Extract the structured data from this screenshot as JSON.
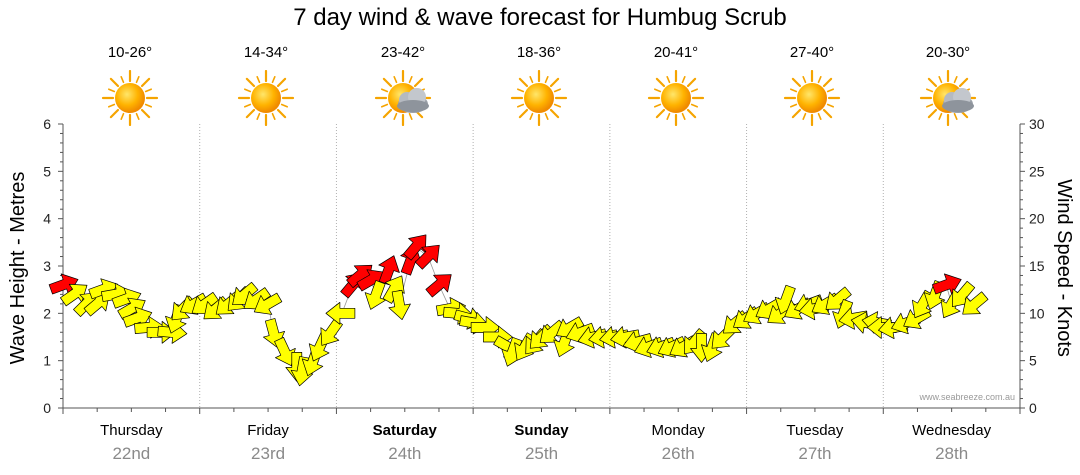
{
  "title": "7 day wind & wave forecast for Humbug Scrub",
  "watermark": "www.seabreeze.com.au",
  "colors": {
    "wind_high": "#ff0000",
    "wind_low": "#ffff00",
    "gridline": "#b0b0b0",
    "axis": "#555555"
  },
  "days": [
    {
      "name": "Thursday",
      "date": "22nd",
      "temp": "10-26°",
      "weather_icon": "sun-icon",
      "bold": false
    },
    {
      "name": "Friday",
      "date": "23rd",
      "temp": "14-34°",
      "weather_icon": "sun-icon",
      "bold": false
    },
    {
      "name": "Saturday",
      "date": "24th",
      "temp": "23-42°",
      "weather_icon": "sun-cloud-icon",
      "bold": true
    },
    {
      "name": "Sunday",
      "date": "25th",
      "temp": "18-36°",
      "weather_icon": "sun-icon",
      "bold": true
    },
    {
      "name": "Monday",
      "date": "26th",
      "temp": "20-41°",
      "weather_icon": "sun-icon",
      "bold": false
    },
    {
      "name": "Tuesday",
      "date": "27th",
      "temp": "27-40°",
      "weather_icon": "sun-icon",
      "bold": false
    },
    {
      "name": "Wednesday",
      "date": "28th",
      "temp": "20-30°",
      "weather_icon": "sun-cloud-icon",
      "bold": false
    }
  ],
  "chart_data": {
    "type": "line",
    "title": "7 day wind & wave forecast for Humbug Scrub",
    "xlabel": "",
    "ylabel": "Wave Height - Metres",
    "ylabel_right": "Wind Speed - Knots",
    "ylim": [
      0,
      6
    ],
    "ylim_right": [
      0,
      30
    ],
    "yticks": [
      0,
      1,
      2,
      3,
      4,
      5,
      6
    ],
    "yticks_right": [
      0,
      5,
      10,
      15,
      20,
      25,
      30
    ],
    "grid": true,
    "x_unit": "days from Thursday 22nd 00:00",
    "categories": [
      "Thursday 22nd",
      "Friday 23rd",
      "Saturday 24th",
      "Sunday 25th",
      "Monday 26th",
      "Tuesday 27th",
      "Wednesday 28th"
    ],
    "series": [
      {
        "name": "",
        "axis": "right",
        "color_rule": "yellow below 13 knots, red above",
        "points": [
          {
            "x": 0.0,
            "y": 13.0,
            "dir": 250
          },
          {
            "x": 0.08,
            "y": 12.0,
            "dir": 235
          },
          {
            "x": 0.17,
            "y": 11.0,
            "dir": 225
          },
          {
            "x": 0.25,
            "y": 11.0,
            "dir": 230
          },
          {
            "x": 0.29,
            "y": 12.5,
            "dir": 250
          },
          {
            "x": 0.38,
            "y": 12.0,
            "dir": 260
          },
          {
            "x": 0.46,
            "y": 11.5,
            "dir": 250
          },
          {
            "x": 0.5,
            "y": 10.5,
            "dir": 240
          },
          {
            "x": 0.54,
            "y": 9.5,
            "dir": 250
          },
          {
            "x": 0.62,
            "y": 8.5,
            "dir": 265
          },
          {
            "x": 0.71,
            "y": 8.0,
            "dir": 270
          },
          {
            "x": 0.79,
            "y": 8.0,
            "dir": 275
          },
          {
            "x": 0.83,
            "y": 9.5,
            "dir": 20
          },
          {
            "x": 0.88,
            "y": 10.5,
            "dir": 45
          },
          {
            "x": 0.96,
            "y": 11.0,
            "dir": 60
          },
          {
            "x": 1.04,
            "y": 11.0,
            "dir": 55
          },
          {
            "x": 1.12,
            "y": 10.5,
            "dir": 50
          },
          {
            "x": 1.21,
            "y": 11.0,
            "dir": 50
          },
          {
            "x": 1.29,
            "y": 11.5,
            "dir": 45
          },
          {
            "x": 1.33,
            "y": 12.0,
            "dir": 50
          },
          {
            "x": 1.42,
            "y": 11.5,
            "dir": 55
          },
          {
            "x": 1.5,
            "y": 11.0,
            "dir": 60
          },
          {
            "x": 1.54,
            "y": 8.0,
            "dir": 345
          },
          {
            "x": 1.62,
            "y": 6.0,
            "dir": 335
          },
          {
            "x": 1.71,
            "y": 4.5,
            "dir": 0
          },
          {
            "x": 1.75,
            "y": 4.0,
            "dir": 10
          },
          {
            "x": 1.83,
            "y": 5.0,
            "dir": 20
          },
          {
            "x": 1.88,
            "y": 6.5,
            "dir": 25
          },
          {
            "x": 1.96,
            "y": 8.0,
            "dir": 35
          },
          {
            "x": 2.04,
            "y": 10.0,
            "dir": 90
          },
          {
            "x": 2.12,
            "y": 13.0,
            "dir": 220
          },
          {
            "x": 2.17,
            "y": 14.0,
            "dir": 230
          },
          {
            "x": 2.25,
            "y": 13.5,
            "dir": 240
          },
          {
            "x": 2.29,
            "y": 12.0,
            "dir": 20
          },
          {
            "x": 2.38,
            "y": 14.5,
            "dir": 200
          },
          {
            "x": 2.42,
            "y": 12.5,
            "dir": 210
          },
          {
            "x": 2.46,
            "y": 11.0,
            "dir": 350
          },
          {
            "x": 2.54,
            "y": 15.5,
            "dir": 200
          },
          {
            "x": 2.58,
            "y": 17.0,
            "dir": 220
          },
          {
            "x": 2.67,
            "y": 16.0,
            "dir": 225
          },
          {
            "x": 2.75,
            "y": 13.0,
            "dir": 230
          },
          {
            "x": 2.83,
            "y": 10.5,
            "dir": 260
          },
          {
            "x": 2.88,
            "y": 10.0,
            "dir": 275
          },
          {
            "x": 2.96,
            "y": 9.5,
            "dir": 285
          },
          {
            "x": 3.0,
            "y": 9.0,
            "dir": 280
          },
          {
            "x": 3.08,
            "y": 8.5,
            "dir": 270
          },
          {
            "x": 3.17,
            "y": 7.5,
            "dir": 270
          },
          {
            "x": 3.25,
            "y": 6.5,
            "dir": 300
          },
          {
            "x": 3.29,
            "y": 6.0,
            "dir": 20
          },
          {
            "x": 3.38,
            "y": 6.5,
            "dir": 30
          },
          {
            "x": 3.46,
            "y": 7.0,
            "dir": 40
          },
          {
            "x": 3.5,
            "y": 7.5,
            "dir": 45
          },
          {
            "x": 3.58,
            "y": 8.0,
            "dir": 50
          },
          {
            "x": 3.67,
            "y": 7.0,
            "dir": 20
          },
          {
            "x": 3.71,
            "y": 8.5,
            "dir": 60
          },
          {
            "x": 3.79,
            "y": 8.0,
            "dir": 70
          },
          {
            "x": 3.88,
            "y": 7.5,
            "dir": 75
          },
          {
            "x": 3.96,
            "y": 7.5,
            "dir": 80
          },
          {
            "x": 4.04,
            "y": 7.5,
            "dir": 80
          },
          {
            "x": 4.12,
            "y": 7.5,
            "dir": 80
          },
          {
            "x": 4.21,
            "y": 7.0,
            "dir": 75
          },
          {
            "x": 4.29,
            "y": 6.5,
            "dir": 70
          },
          {
            "x": 4.38,
            "y": 6.5,
            "dir": 70
          },
          {
            "x": 4.46,
            "y": 6.5,
            "dir": 65
          },
          {
            "x": 4.54,
            "y": 6.5,
            "dir": 60
          },
          {
            "x": 4.62,
            "y": 7.0,
            "dir": 40
          },
          {
            "x": 4.67,
            "y": 6.5,
            "dir": 0
          },
          {
            "x": 4.75,
            "y": 6.5,
            "dir": 20
          },
          {
            "x": 4.83,
            "y": 7.5,
            "dir": 45
          },
          {
            "x": 4.92,
            "y": 9.0,
            "dir": 50
          },
          {
            "x": 5.0,
            "y": 9.5,
            "dir": 55
          },
          {
            "x": 5.08,
            "y": 10.0,
            "dir": 60
          },
          {
            "x": 5.17,
            "y": 10.5,
            "dir": 60
          },
          {
            "x": 5.25,
            "y": 10.0,
            "dir": 55
          },
          {
            "x": 5.29,
            "y": 11.5,
            "dir": 20
          },
          {
            "x": 5.38,
            "y": 10.5,
            "dir": 60
          },
          {
            "x": 5.46,
            "y": 11.0,
            "dir": 70
          },
          {
            "x": 5.5,
            "y": 10.5,
            "dir": 80
          },
          {
            "x": 5.58,
            "y": 11.0,
            "dir": 60
          },
          {
            "x": 5.67,
            "y": 11.5,
            "dir": 50
          },
          {
            "x": 5.71,
            "y": 10.0,
            "dir": 20
          },
          {
            "x": 5.79,
            "y": 9.5,
            "dir": 80
          },
          {
            "x": 5.88,
            "y": 9.0,
            "dir": 100
          },
          {
            "x": 5.96,
            "y": 9.0,
            "dir": 100
          },
          {
            "x": 6.0,
            "y": 8.5,
            "dir": 90
          },
          {
            "x": 6.08,
            "y": 8.5,
            "dir": 80
          },
          {
            "x": 6.17,
            "y": 9.0,
            "dir": 70
          },
          {
            "x": 6.25,
            "y": 9.5,
            "dir": 60
          },
          {
            "x": 6.29,
            "y": 11.0,
            "dir": 30
          },
          {
            "x": 6.38,
            "y": 12.0,
            "dir": 20
          },
          {
            "x": 6.46,
            "y": 13.0,
            "dir": 250
          },
          {
            "x": 6.5,
            "y": 11.0,
            "dir": 30
          },
          {
            "x": 6.58,
            "y": 12.0,
            "dir": 40
          },
          {
            "x": 6.67,
            "y": 11.0,
            "dir": 50
          }
        ]
      }
    ]
  }
}
